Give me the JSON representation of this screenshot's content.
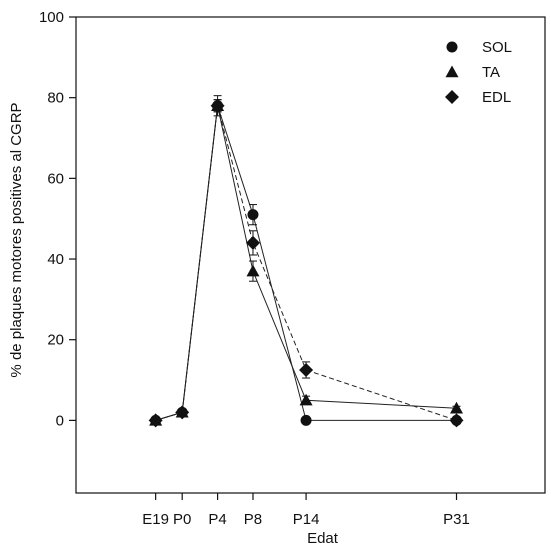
{
  "chart_data": {
    "type": "line",
    "xlabel": "Edat",
    "ylabel": "% de plaques motores positives al CGRP",
    "categories": [
      "E19",
      "P0",
      "P4",
      "P8",
      "P14",
      "P31"
    ],
    "x": [
      -3,
      0,
      4,
      8,
      14,
      31
    ],
    "ylim": [
      -18,
      100
    ],
    "yticks": [
      0,
      20,
      40,
      60,
      80,
      100
    ],
    "grid": false,
    "legend": "top-right",
    "series": [
      {
        "name": "SOL",
        "marker": "circle",
        "line_style": "solid",
        "values": [
          0,
          2,
          78,
          51,
          0,
          0
        ],
        "errors": [
          0,
          0,
          2.5,
          2.5,
          0,
          0
        ]
      },
      {
        "name": "TA",
        "marker": "triangle",
        "line_style": "solid",
        "values": [
          0,
          2,
          78,
          37,
          5,
          3
        ],
        "errors": [
          0,
          0,
          1.5,
          2.5,
          1,
          0.5
        ]
      },
      {
        "name": "EDL",
        "marker": "diamond",
        "line_style": "dashed",
        "values": [
          0,
          2,
          78,
          44,
          12.5,
          0
        ],
        "errors": [
          0,
          0,
          1.5,
          3,
          2,
          0
        ]
      }
    ]
  }
}
